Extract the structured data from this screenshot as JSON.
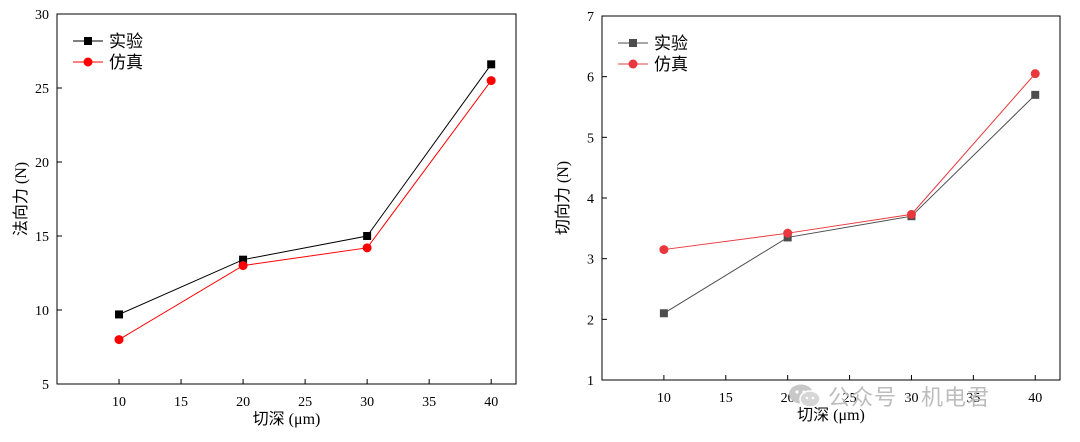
{
  "chart_data": [
    {
      "type": "line",
      "xlabel": "切深 (μm)",
      "ylabel": "法向力 (N)",
      "x": [
        10,
        20,
        30,
        40
      ],
      "xlim": [
        5,
        42
      ],
      "ylim": [
        5,
        30
      ],
      "xticks": [
        10,
        15,
        20,
        25,
        30,
        35,
        40
      ],
      "yticks": [
        5,
        10,
        15,
        20,
        25,
        30
      ],
      "legend_position": "top-left",
      "series": [
        {
          "name": "实验",
          "values": [
            9.7,
            13.4,
            15.0,
            26.6
          ],
          "color": "#000000",
          "marker": "square"
        },
        {
          "name": "仿真",
          "values": [
            8.0,
            13.0,
            14.2,
            25.5
          ],
          "color": "#ff0000",
          "marker": "circle"
        }
      ]
    },
    {
      "type": "line",
      "xlabel": "切深 (μm)",
      "ylabel": "切向力 (N)",
      "x": [
        10,
        20,
        30,
        40
      ],
      "xlim": [
        5,
        42
      ],
      "ylim": [
        1,
        7
      ],
      "xticks": [
        10,
        15,
        20,
        25,
        30,
        35,
        40
      ],
      "yticks": [
        1,
        2,
        3,
        4,
        5,
        6,
        7
      ],
      "legend_position": "top-left",
      "series": [
        {
          "name": "实验",
          "values": [
            2.1,
            3.35,
            3.7,
            5.7
          ],
          "color": "#4d4d4d",
          "marker": "square"
        },
        {
          "name": "仿真",
          "values": [
            3.15,
            3.42,
            3.73,
            6.05
          ],
          "color": "#e8383d",
          "marker": "circle"
        }
      ]
    }
  ],
  "watermark": {
    "text": "公众号 · 机电君",
    "icon": "wechat-logo-icon"
  }
}
